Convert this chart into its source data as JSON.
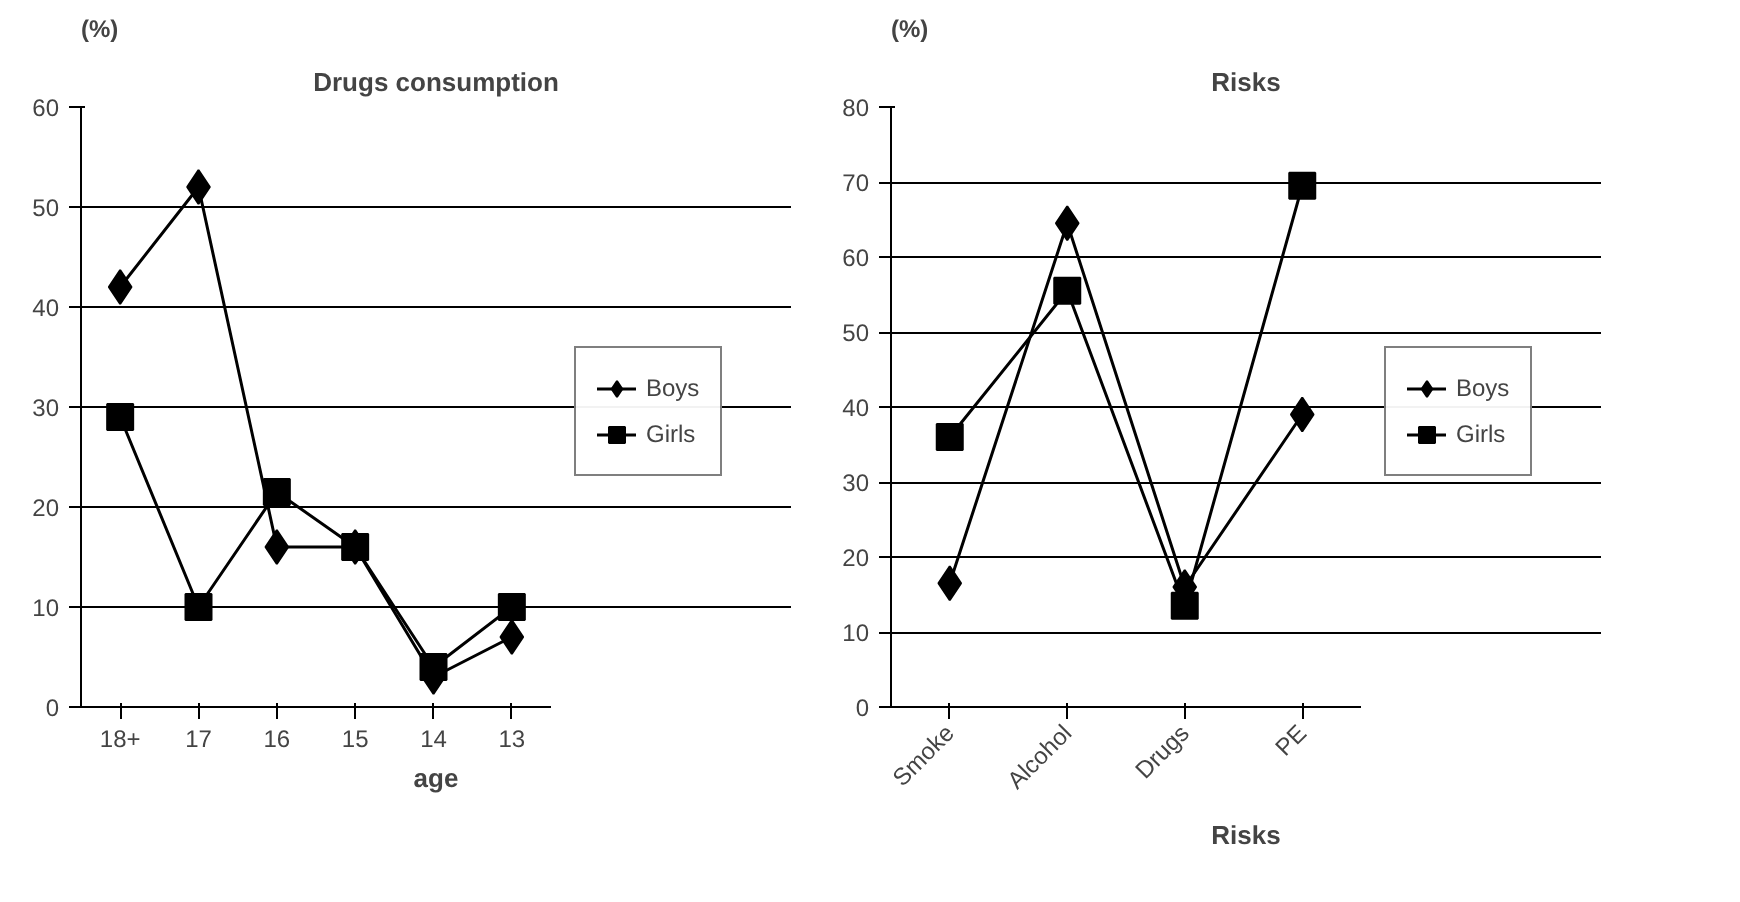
{
  "chart_data": [
    {
      "type": "line",
      "title": "Drugs consumption",
      "ylabel": "(%)",
      "xlabel": "age",
      "categories": [
        "18+",
        "17",
        "16",
        "15",
        "14",
        "13"
      ],
      "ylim": [
        0,
        60
      ],
      "yticks": [
        0,
        10,
        20,
        30,
        40,
        50,
        60
      ],
      "grid": "y",
      "legend": "right",
      "line_style": "solid",
      "series": [
        {
          "name": "Boys",
          "color": "#000000",
          "marker": "diamond",
          "values": [
            42,
            52,
            16,
            16,
            3,
            7
          ]
        },
        {
          "name": "Girls",
          "color": "#000000",
          "marker": "square",
          "values": [
            29,
            10,
            21.5,
            16,
            4,
            10
          ]
        }
      ]
    },
    {
      "type": "line",
      "title": "Risks",
      "ylabel": "(%)",
      "xlabel": "Risks",
      "categories": [
        "Smoke",
        "Alcohol",
        "Drugs",
        "PE"
      ],
      "ylim": [
        0,
        80
      ],
      "yticks": [
        0,
        10,
        20,
        30,
        40,
        50,
        60,
        70,
        80
      ],
      "grid": "y",
      "legend": "right",
      "line_style": "solid",
      "series": [
        {
          "name": "Boys",
          "color": "#000000",
          "marker": "diamond",
          "values": [
            16.5,
            64.5,
            16,
            39
          ]
        },
        {
          "name": "Girls",
          "color": "#000000",
          "marker": "square",
          "values": [
            36,
            55.5,
            13.5,
            69.5
          ]
        }
      ]
    }
  ]
}
